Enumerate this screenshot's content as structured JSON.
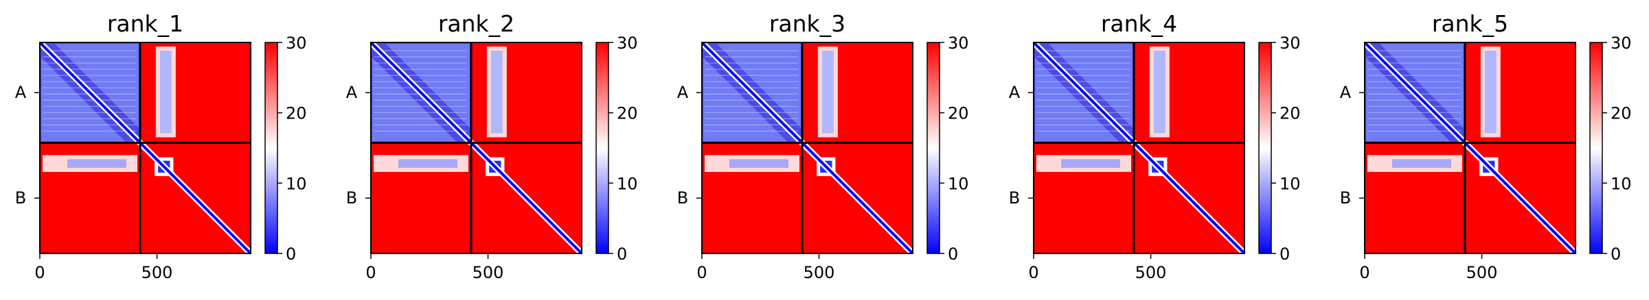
{
  "chart_data": {
    "type": "heatmap",
    "colormap": "bwr",
    "colorbar": {
      "min": 0,
      "max": 30,
      "ticks": [
        "0",
        "10",
        "20",
        "30"
      ]
    },
    "x_ticks": [
      "0",
      "500"
    ],
    "x_tick_values": [
      0,
      500
    ],
    "x_range": [
      0,
      900
    ],
    "chain_boundary": 428,
    "chain_labels": [
      "A",
      "B"
    ],
    "panels": [
      {
        "title": "rank_1"
      },
      {
        "title": "rank_2"
      },
      {
        "title": "rank_3"
      },
      {
        "title": "rank_4"
      },
      {
        "title": "rank_5"
      }
    ]
  }
}
